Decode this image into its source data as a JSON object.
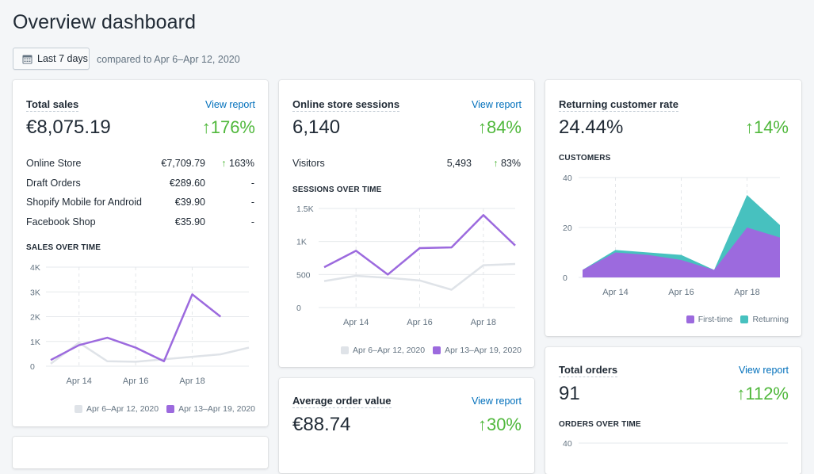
{
  "page": {
    "title": "Overview dashboard"
  },
  "date_picker": {
    "label": "Last 7 days",
    "compare": "compared to Apr 6–Apr 12, 2020",
    "icon": "calendar-icon"
  },
  "colors": {
    "current": "#9c6ade",
    "previous": "#dfe3e8",
    "positive": "#50b83c",
    "returning": "#47c1bf",
    "link": "#006fbb"
  },
  "cards": {
    "total_sales": {
      "title": "Total sales",
      "view_report": "View report",
      "value": "€8,075.19",
      "change": "176%",
      "rows": [
        {
          "name": "Online Store",
          "value": "€7,709.79",
          "change": "163%",
          "up": true
        },
        {
          "name": "Draft Orders",
          "value": "€289.60",
          "change": "-",
          "up": false
        },
        {
          "name": "Shopify Mobile for Android",
          "value": "€39.90",
          "change": "-",
          "up": false
        },
        {
          "name": "Facebook Shop",
          "value": "€35.90",
          "change": "-",
          "up": false
        }
      ],
      "section": "SALES OVER TIME"
    },
    "sessions": {
      "title": "Online store sessions",
      "view_report": "View report",
      "value": "6,140",
      "change": "84%",
      "rows": [
        {
          "name": "Visitors",
          "value": "5,493",
          "change": "83%",
          "up": true
        }
      ],
      "section": "SESSIONS OVER TIME"
    },
    "aov": {
      "title": "Average order value",
      "view_report": "View report",
      "value": "€88.74",
      "change": "30%"
    },
    "returning": {
      "title": "Returning customer rate",
      "value": "24.44%",
      "change": "14%",
      "section": "CUSTOMERS"
    },
    "orders": {
      "title": "Total orders",
      "view_report": "View report",
      "value": "91",
      "change": "112%",
      "section": "ORDERS OVER TIME"
    }
  },
  "chart_data": [
    {
      "name": "sales-over-time",
      "type": "line",
      "x": [
        0,
        1,
        2,
        3,
        4,
        5,
        6,
        7
      ],
      "xticks": [
        {
          "pos": 1,
          "label": "Apr 14"
        },
        {
          "pos": 3,
          "label": "Apr 16"
        },
        {
          "pos": 5,
          "label": "Apr 18"
        }
      ],
      "yticks": [
        {
          "v": 0,
          "label": "0"
        },
        {
          "v": 1000,
          "label": "1K"
        },
        {
          "v": 2000,
          "label": "2K"
        },
        {
          "v": 3000,
          "label": "3K"
        },
        {
          "v": 4000,
          "label": "4K"
        }
      ],
      "ylim": [
        0,
        4000
      ],
      "series": [
        {
          "name": "Apr 6–Apr 12, 2020",
          "role": "previous",
          "values": [
            100,
            950,
            200,
            180,
            280,
            380,
            480,
            750
          ]
        },
        {
          "name": "Apr 13–Apr 19, 2020",
          "role": "current",
          "values": [
            250,
            850,
            1150,
            750,
            200,
            2900,
            2000,
            null
          ]
        }
      ],
      "legend": "bottom-right",
      "grid": true
    },
    {
      "name": "sessions-over-time",
      "type": "line",
      "x": [
        0,
        1,
        2,
        3,
        4,
        5,
        6
      ],
      "xticks": [
        {
          "pos": 1,
          "label": "Apr 14"
        },
        {
          "pos": 3,
          "label": "Apr 16"
        },
        {
          "pos": 5,
          "label": "Apr 18"
        }
      ],
      "yticks": [
        {
          "v": 0,
          "label": "0"
        },
        {
          "v": 500,
          "label": "500"
        },
        {
          "v": 1000,
          "label": "1K"
        },
        {
          "v": 1500,
          "label": "1.5K"
        }
      ],
      "ylim": [
        0,
        1500
      ],
      "series": [
        {
          "name": "Apr 6–Apr 12, 2020",
          "role": "previous",
          "values": [
            400,
            480,
            450,
            410,
            270,
            640,
            660
          ]
        },
        {
          "name": "Apr 13–Apr 19, 2020",
          "role": "current",
          "values": [
            610,
            860,
            500,
            900,
            910,
            1400,
            940
          ]
        }
      ],
      "legend": "bottom-right",
      "grid": true
    },
    {
      "name": "customers",
      "type": "area",
      "x": [
        0,
        1,
        2,
        3,
        4,
        5,
        6
      ],
      "xticks": [
        {
          "pos": 1,
          "label": "Apr 14"
        },
        {
          "pos": 3,
          "label": "Apr 16"
        },
        {
          "pos": 5,
          "label": "Apr 18"
        }
      ],
      "yticks": [
        {
          "v": 0,
          "label": "0"
        },
        {
          "v": 20,
          "label": "20"
        },
        {
          "v": 40,
          "label": "40"
        }
      ],
      "ylim": [
        0,
        40
      ],
      "series": [
        {
          "name": "First-time",
          "role": "first",
          "values": [
            3,
            10,
            9,
            7,
            3,
            20,
            16
          ]
        },
        {
          "name": "Returning",
          "role": "returning",
          "values": [
            0,
            1,
            1,
            2,
            0,
            13,
            5
          ]
        }
      ],
      "stacked": true,
      "legend": "bottom-right",
      "grid": true
    },
    {
      "name": "orders-over-time",
      "type": "line",
      "yticks": [
        {
          "v": 40,
          "label": "40"
        }
      ]
    }
  ]
}
